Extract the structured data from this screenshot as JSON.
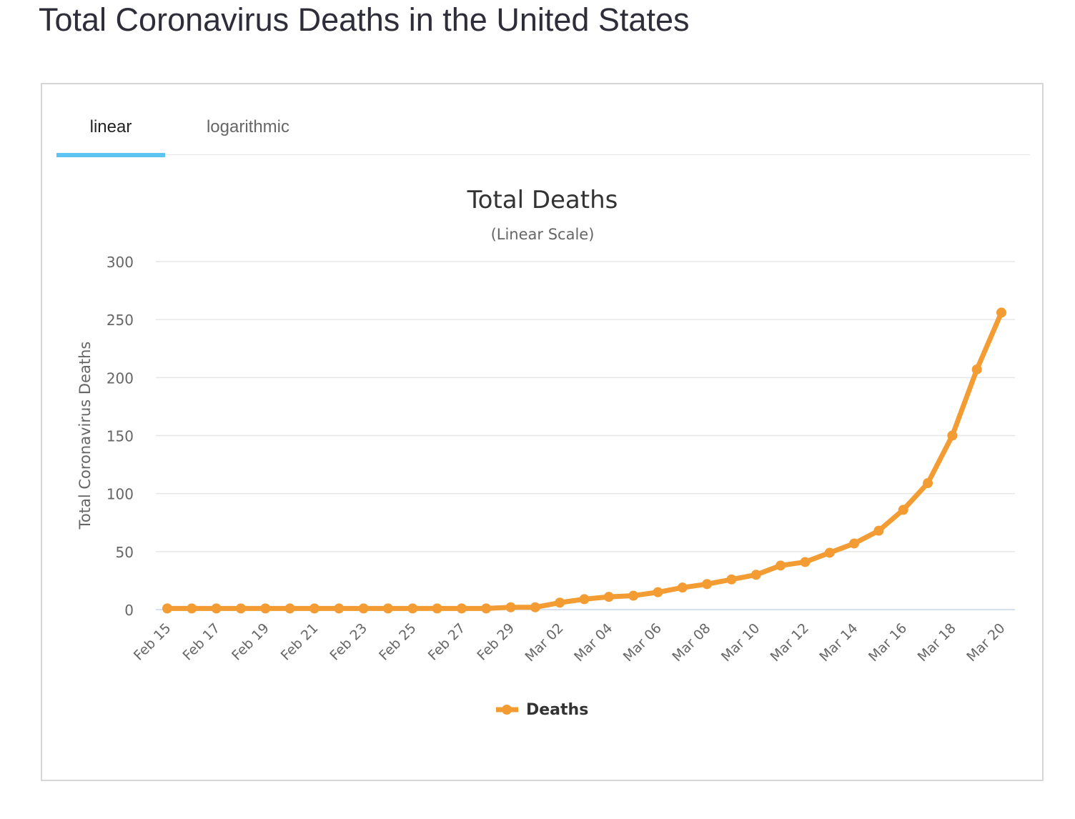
{
  "page": {
    "title": "Total Coronavirus Deaths in the United States"
  },
  "tabs": [
    {
      "label": "linear",
      "active": true
    },
    {
      "label": "logarithmic",
      "active": false
    }
  ],
  "colors": {
    "series": "#f39c33",
    "active_tab_underline": "#5bc4f1",
    "grid": "#e6e6e6"
  },
  "chart_data": {
    "type": "line",
    "title": "Total Deaths",
    "subtitle": "(Linear Scale)",
    "xlabel": "",
    "ylabel": "Total Coronavirus Deaths",
    "ylim": [
      0,
      300
    ],
    "yticks": [
      0,
      50,
      100,
      150,
      200,
      250,
      300
    ],
    "grid": true,
    "legend_position": "bottom-center",
    "x": [
      "Feb 15",
      "Feb 16",
      "Feb 17",
      "Feb 18",
      "Feb 19",
      "Feb 20",
      "Feb 21",
      "Feb 22",
      "Feb 23",
      "Feb 24",
      "Feb 25",
      "Feb 26",
      "Feb 27",
      "Feb 28",
      "Feb 29",
      "Mar 01",
      "Mar 02",
      "Mar 03",
      "Mar 04",
      "Mar 05",
      "Mar 06",
      "Mar 07",
      "Mar 08",
      "Mar 09",
      "Mar 10",
      "Mar 11",
      "Mar 12",
      "Mar 13",
      "Mar 14",
      "Mar 15",
      "Mar 16",
      "Mar 17",
      "Mar 18",
      "Mar 19",
      "Mar 20"
    ],
    "xtick_labels": [
      "Feb 15",
      "Feb 17",
      "Feb 19",
      "Feb 21",
      "Feb 23",
      "Feb 25",
      "Feb 27",
      "Feb 29",
      "Mar 02",
      "Mar 04",
      "Mar 06",
      "Mar 08",
      "Mar 10",
      "Mar 12",
      "Mar 14",
      "Mar 16",
      "Mar 18",
      "Mar 20"
    ],
    "series": [
      {
        "name": "Deaths",
        "values": [
          1,
          1,
          1,
          1,
          1,
          1,
          1,
          1,
          1,
          1,
          1,
          1,
          1,
          1,
          2,
          2,
          6,
          9,
          11,
          12,
          15,
          19,
          22,
          26,
          30,
          38,
          41,
          49,
          57,
          68,
          86,
          109,
          150,
          207,
          256
        ]
      }
    ]
  }
}
